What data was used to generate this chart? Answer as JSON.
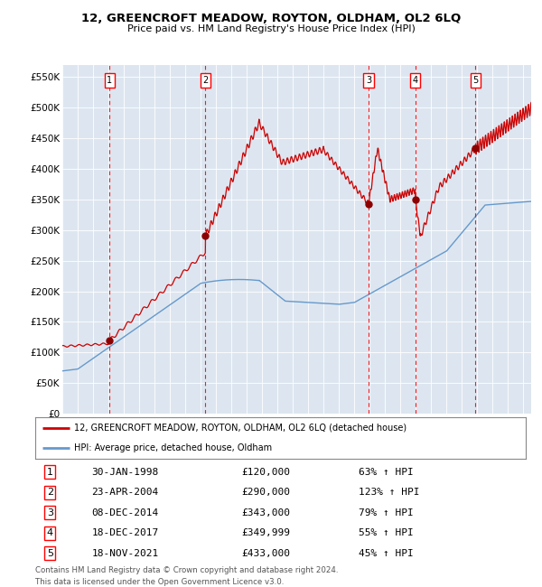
{
  "title": "12, GREENCROFT MEADOW, ROYTON, OLDHAM, OL2 6LQ",
  "subtitle": "Price paid vs. HM Land Registry's House Price Index (HPI)",
  "legend_line1": "12, GREENCROFT MEADOW, ROYTON, OLDHAM, OL2 6LQ (detached house)",
  "legend_line2": "HPI: Average price, detached house, Oldham",
  "footer1": "Contains HM Land Registry data © Crown copyright and database right 2024.",
  "footer2": "This data is licensed under the Open Government Licence v3.0.",
  "sale_dates_num": [
    1998.08,
    2004.31,
    2014.92,
    2017.96,
    2021.88
  ],
  "sale_prices": [
    120000,
    290000,
    343000,
    349999,
    433000
  ],
  "sale_labels": [
    "1",
    "2",
    "3",
    "4",
    "5"
  ],
  "sale_table": [
    [
      "1",
      "30-JAN-1998",
      "£120,000",
      "63% ↑ HPI"
    ],
    [
      "2",
      "23-APR-2004",
      "£290,000",
      "123% ↑ HPI"
    ],
    [
      "3",
      "08-DEC-2014",
      "£343,000",
      "79% ↑ HPI"
    ],
    [
      "4",
      "18-DEC-2017",
      "£349,999",
      "55% ↑ HPI"
    ],
    [
      "5",
      "18-NOV-2021",
      "£433,000",
      "45% ↑ HPI"
    ]
  ],
  "hpi_color": "#6699cc",
  "price_color": "#cc0000",
  "bg_color": "#dde6f0",
  "ylim": [
    0,
    570000
  ],
  "xlim_start": 1995.0,
  "xlim_end": 2025.5
}
